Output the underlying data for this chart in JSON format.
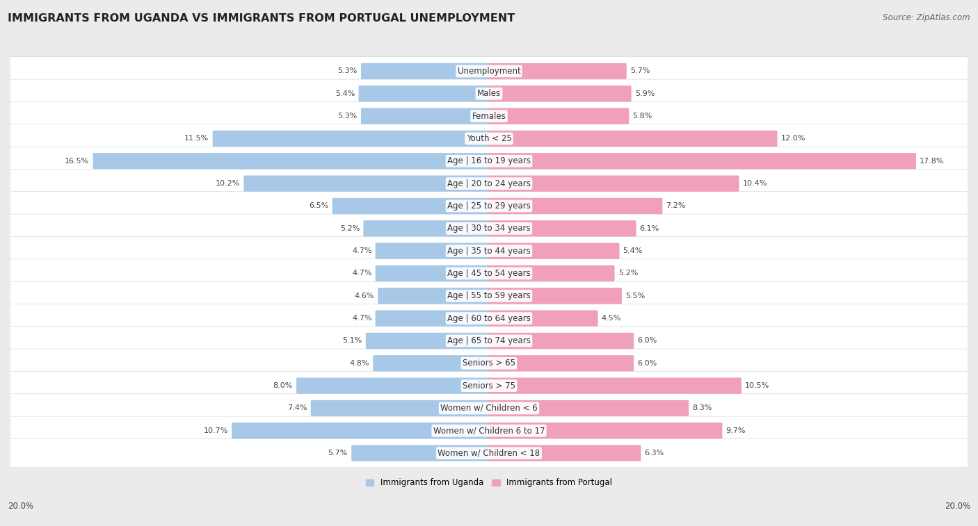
{
  "title": "IMMIGRANTS FROM UGANDA VS IMMIGRANTS FROM PORTUGAL UNEMPLOYMENT",
  "source": "Source: ZipAtlas.com",
  "categories": [
    "Unemployment",
    "Males",
    "Females",
    "Youth < 25",
    "Age | 16 to 19 years",
    "Age | 20 to 24 years",
    "Age | 25 to 29 years",
    "Age | 30 to 34 years",
    "Age | 35 to 44 years",
    "Age | 45 to 54 years",
    "Age | 55 to 59 years",
    "Age | 60 to 64 years",
    "Age | 65 to 74 years",
    "Seniors > 65",
    "Seniors > 75",
    "Women w/ Children < 6",
    "Women w/ Children 6 to 17",
    "Women w/ Children < 18"
  ],
  "uganda_values": [
    5.3,
    5.4,
    5.3,
    11.5,
    16.5,
    10.2,
    6.5,
    5.2,
    4.7,
    4.7,
    4.6,
    4.7,
    5.1,
    4.8,
    8.0,
    7.4,
    10.7,
    5.7
  ],
  "portugal_values": [
    5.7,
    5.9,
    5.8,
    12.0,
    17.8,
    10.4,
    7.2,
    6.1,
    5.4,
    5.2,
    5.5,
    4.5,
    6.0,
    6.0,
    10.5,
    8.3,
    9.7,
    6.3
  ],
  "uganda_color": "#a8c8e8",
  "portugal_color": "#f0a0b8",
  "background_color": "#ebebeb",
  "bar_row_color": "#ffffff",
  "max_value": 20.0,
  "legend_uganda": "Immigrants from Uganda",
  "legend_portugal": "Immigrants from Portugal",
  "title_fontsize": 11.5,
  "source_fontsize": 8.5,
  "label_fontsize": 8.5,
  "value_fontsize": 8.0,
  "axis_label_fontsize": 8.5
}
